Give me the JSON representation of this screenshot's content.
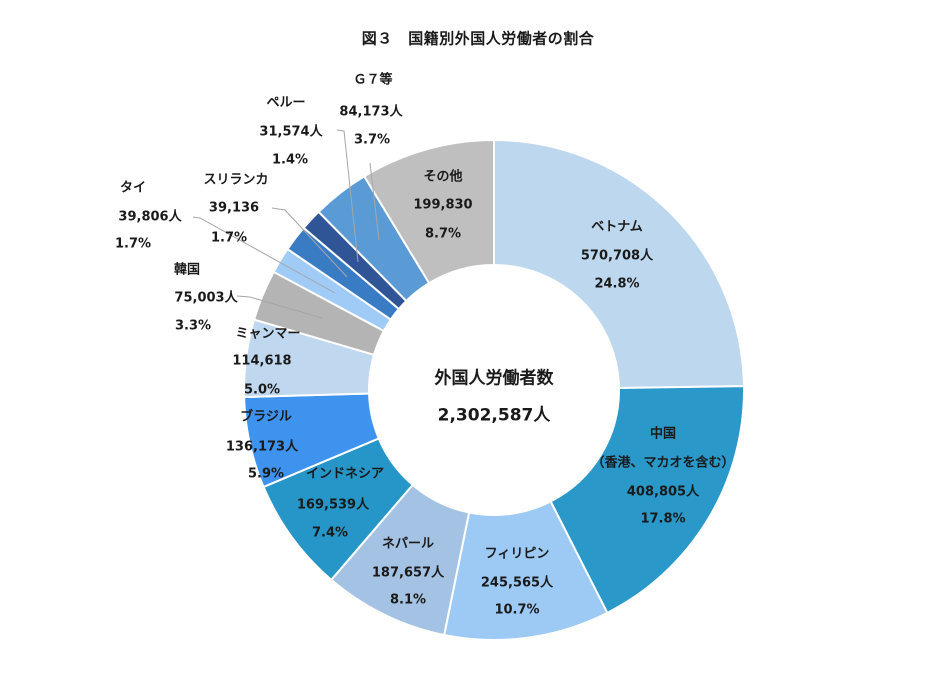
{
  "title": "図３　国籍別外国人労働者の割合",
  "center": {
    "label": "外国人労働者数",
    "total": "2,302,587人"
  },
  "chart_data": {
    "type": "pie",
    "variant": "donut",
    "title": "図３　国籍別外国人労働者の割合",
    "center_label": "外国人労働者数",
    "total": 2302587,
    "total_label": "2,302,587人",
    "start_angle": "12 o'clock, clockwise",
    "legend": "none (direct labels)",
    "slices": [
      {
        "key": "vietnam",
        "name": "ベトナム",
        "value": 570708,
        "value_label": "570,708人",
        "pct": 24.8,
        "pct_label": "24.8%",
        "color": "#BDD7EE"
      },
      {
        "key": "china",
        "name": "中国",
        "sub": "（香港、マカオを含む）",
        "value": 408805,
        "value_label": "408,805人",
        "pct": 17.8,
        "pct_label": "17.8%",
        "color": "#2A98C9"
      },
      {
        "key": "philippines",
        "name": "フィリピン",
        "value": 245565,
        "value_label": "245,565人",
        "pct": 10.7,
        "pct_label": "10.7%",
        "color": "#9DCAF5"
      },
      {
        "key": "nepal",
        "name": "ネパール",
        "value": 187657,
        "value_label": "187,657人",
        "pct": 8.1,
        "pct_label": "8.1%",
        "color": "#A4C2E3"
      },
      {
        "key": "indonesia",
        "name": "インドネシア",
        "value": 169539,
        "value_label": "169,539人",
        "pct": 7.4,
        "pct_label": "7.4%",
        "color": "#2596C7"
      },
      {
        "key": "brazil",
        "name": "ブラジル",
        "value": 136173,
        "value_label": "136,173人",
        "pct": 5.9,
        "pct_label": "5.9%",
        "color": "#3D93EE"
      },
      {
        "key": "myanmar",
        "name": "ミャンマー",
        "value": 114618,
        "value_label": "114,618",
        "pct": 5.0,
        "pct_label": "5.0%",
        "color": "#C0D8EF"
      },
      {
        "key": "korea",
        "name": "韓国",
        "value": 75003,
        "value_label": "75,003人",
        "pct": 3.3,
        "pct_label": "3.3%",
        "color": "#B4B4B4"
      },
      {
        "key": "thailand",
        "name": "タイ",
        "value": 39806,
        "value_label": "39,806人",
        "pct": 1.7,
        "pct_label": "1.7%",
        "color": "#9FCBF6"
      },
      {
        "key": "srilanka",
        "name": "スリランカ",
        "value": 39136,
        "value_label": "39,136",
        "pct": 1.7,
        "pct_label": "1.7%",
        "color": "#3A7CC4"
      },
      {
        "key": "peru",
        "name": "ペルー",
        "value": 31574,
        "value_label": "31,574人",
        "pct": 1.4,
        "pct_label": "1.4%",
        "color": "#2F5597"
      },
      {
        "key": "g7",
        "name": "Ｇ７等",
        "value": 84173,
        "value_label": "84,173人",
        "pct": 3.7,
        "pct_label": "3.7%",
        "color": "#5B9BD5"
      },
      {
        "key": "others",
        "name": "その他",
        "value": 199830,
        "value_label": "199,830",
        "pct": 8.7,
        "pct_label": "8.7%",
        "color": "#BFBFBF"
      }
    ]
  }
}
